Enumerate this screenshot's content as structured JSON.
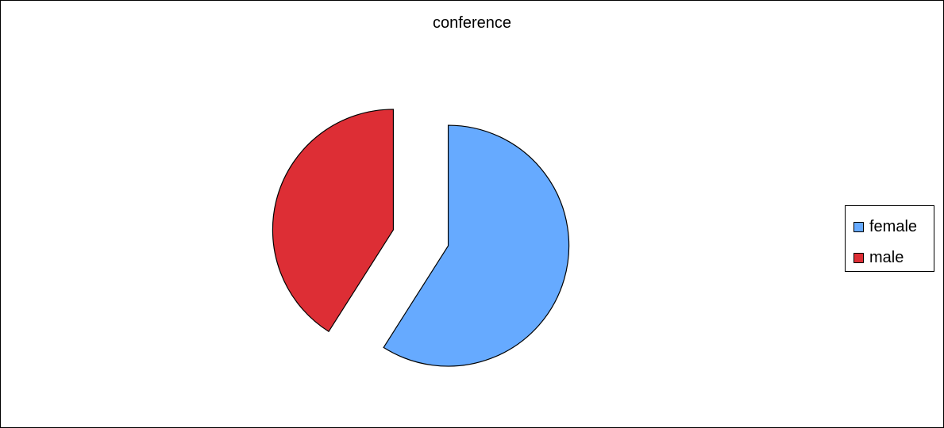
{
  "chart_data": {
    "type": "pie",
    "title": "conference",
    "categories": [
      "female",
      "male"
    ],
    "values": [
      59,
      41
    ],
    "colors": [
      "#66aaff",
      "#dd2e35"
    ],
    "exploded": true,
    "legend": "right"
  }
}
